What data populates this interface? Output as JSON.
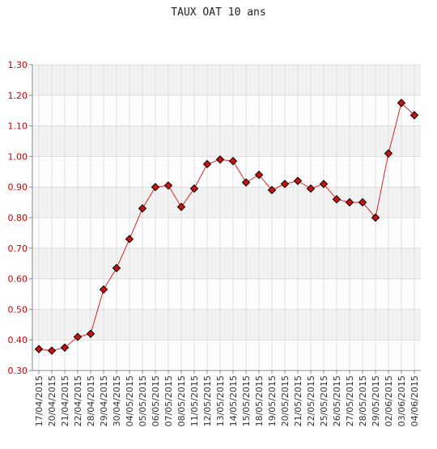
{
  "chart_data": {
    "type": "line",
    "title": "TAUX OAT 10 ans",
    "xlabel": "",
    "ylabel": "",
    "ylim": [
      0.3,
      1.3
    ],
    "yticks": [
      "0.30",
      "0.40",
      "0.50",
      "0.60",
      "0.70",
      "0.80",
      "0.90",
      "1.00",
      "1.10",
      "1.20",
      "1.30"
    ],
    "categories": [
      "17/04/2015",
      "20/04/2015",
      "21/04/2015",
      "22/04/2015",
      "28/04/2015",
      "29/04/2015",
      "30/04/2015",
      "04/05/2015",
      "05/05/2015",
      "06/05/2015",
      "07/05/2015",
      "08/05/2015",
      "11/05/2015",
      "12/05/2015",
      "13/05/2015",
      "14/05/2015",
      "15/05/2015",
      "18/05/2015",
      "19/05/2015",
      "20/05/2015",
      "21/05/2015",
      "22/05/2015",
      "25/05/2015",
      "26/05/2015",
      "27/05/2015",
      "28/05/2015",
      "29/05/2015",
      "02/06/2015",
      "03/06/2015",
      "04/06/2015"
    ],
    "series": [
      {
        "values": [
          0.37,
          0.365,
          0.375,
          0.41,
          0.42,
          0.565,
          0.635,
          0.73,
          0.83,
          0.9,
          0.905,
          0.835,
          0.895,
          0.975,
          0.99,
          0.985,
          0.915,
          0.94,
          0.89,
          0.91,
          0.92,
          0.895,
          0.91,
          0.86,
          0.85,
          0.85,
          0.8,
          1.01,
          1.175,
          1.135
        ]
      }
    ],
    "grid": true,
    "legend": "none",
    "colors": {
      "line": "#dd2222",
      "marker_fill": "#cc1111",
      "marker_stroke": "#000000",
      "ytick_text": "#cc0000",
      "band": "#f2f2f2",
      "grid": "#dddddd"
    }
  }
}
